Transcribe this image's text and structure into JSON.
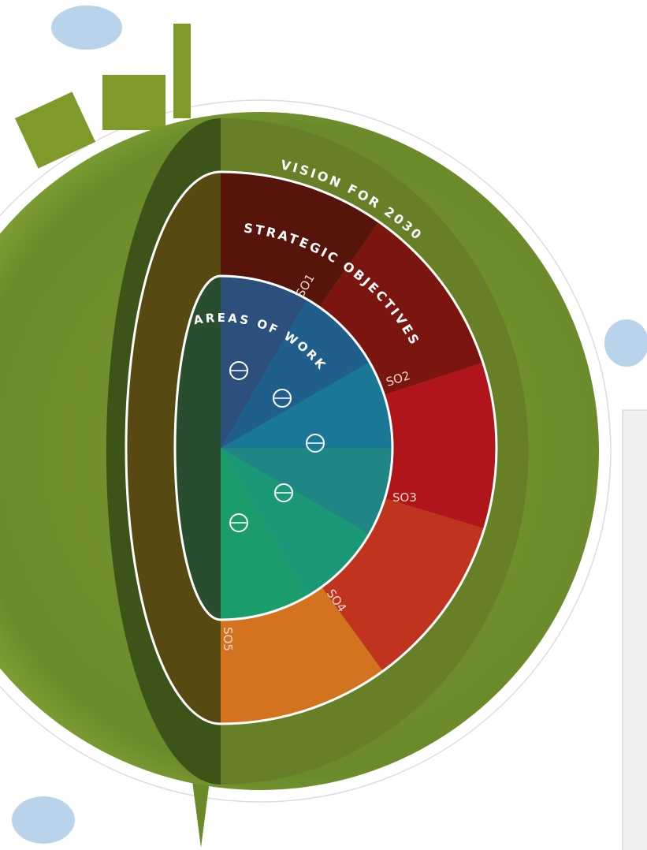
{
  "diagram": {
    "vision": "VISION FOR 2030",
    "strategic_objectives": "STRATEGIC OBJECTIVES",
    "areas_of_work": "AREAS OF WORK",
    "objectives": [
      "SO1",
      "SO2",
      "SO3",
      "SO4",
      "SO5"
    ]
  }
}
